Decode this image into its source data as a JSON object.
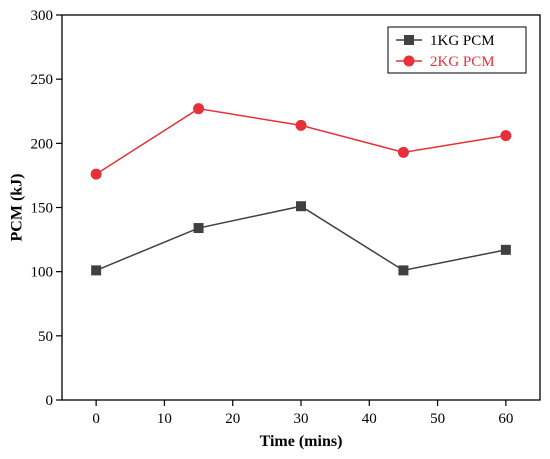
{
  "chart_data": {
    "type": "line",
    "xlabel": "Time (mins)",
    "ylabel": "PCM (kJ)",
    "xlim": [
      -5,
      65
    ],
    "ylim": [
      0,
      300
    ],
    "xticks": [
      0,
      10,
      20,
      30,
      40,
      50,
      60
    ],
    "yticks": [
      0,
      50,
      100,
      150,
      200,
      250,
      300
    ],
    "legend_position": "top-right",
    "series": [
      {
        "name": "1KG PCM",
        "marker": "square",
        "color": "#404040",
        "x": [
          0,
          15,
          30,
          45,
          60
        ],
        "y": [
          101,
          134,
          151,
          101,
          117
        ]
      },
      {
        "name": "2KG PCM",
        "marker": "circle",
        "color": "#e8303a",
        "x": [
          0,
          15,
          30,
          45,
          60
        ],
        "y": [
          176,
          227,
          214,
          193,
          206
        ]
      }
    ]
  }
}
